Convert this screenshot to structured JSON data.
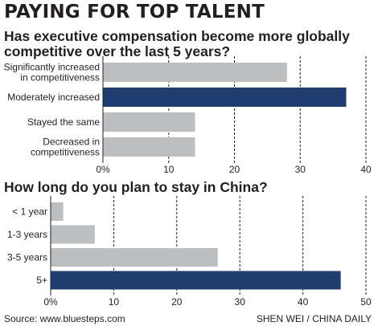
{
  "title": "PAYING FOR TOP TALENT",
  "chart_data": [
    {
      "type": "bar",
      "orientation": "horizontal",
      "title": "Has executive compensation become more globally competitive over the last 5 years?",
      "title_lines": [
        "Has executive compensation become more globally",
        "competitive over the last 5 years?"
      ],
      "categories": [
        [
          "Significantly increased",
          "in competitiveness"
        ],
        [
          "Moderately increased"
        ],
        [
          "Stayed the same"
        ],
        [
          "Decreased in",
          "competitiveness"
        ]
      ],
      "values": [
        28,
        37,
        14,
        14
      ],
      "highlight_index": 1,
      "xlim": [
        0,
        40
      ],
      "ticks": [
        0,
        10,
        20,
        30,
        40
      ],
      "tick_labels": [
        "0%",
        "10",
        "20",
        "30",
        "40"
      ],
      "grid": true
    },
    {
      "type": "bar",
      "orientation": "horizontal",
      "title": "How long do you plan to stay in China?",
      "categories": [
        [
          "< 1 year"
        ],
        [
          "1-3 years"
        ],
        [
          "3-5 years"
        ],
        [
          "5+"
        ]
      ],
      "values": [
        2,
        7,
        26.5,
        46
      ],
      "highlight_index": 3,
      "xlim": [
        0,
        50
      ],
      "ticks": [
        0,
        10,
        20,
        30,
        40,
        50
      ],
      "tick_labels": [
        "0%",
        "10",
        "20",
        "30",
        "40",
        "50"
      ],
      "grid": true
    }
  ],
  "colors": {
    "bar": "#bcbec0",
    "highlight": "#1f3d6e",
    "grid": "#231f20",
    "text": "#231f20"
  },
  "footer": {
    "source": "Source: www.bluesteps.com",
    "credit": "SHEN WEI / CHINA DAILY"
  }
}
